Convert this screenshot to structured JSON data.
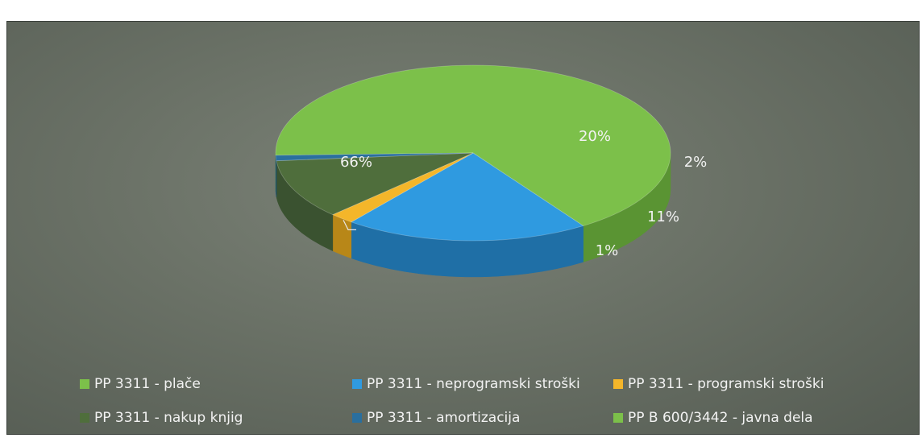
{
  "chart_data": {
    "type": "pie",
    "title": "",
    "style": "3d",
    "legend_position": "bottom",
    "slices": [
      {
        "name": "PP 3311 - plače",
        "value": 66,
        "label": "66%",
        "color": "#7cc04a",
        "side_color": "#5a9433"
      },
      {
        "name": "PP 3311 - neprogramski stroški",
        "value": 20,
        "label": "20%",
        "color": "#2f9ae0",
        "side_color": "#1f6fa6"
      },
      {
        "name": "PP 3311 - programski stroški",
        "value": 2,
        "label": "2%",
        "color": "#f4b62a",
        "side_color": "#b88718"
      },
      {
        "name": "PP 3311 - nakup knjig",
        "value": 11,
        "label": "11%",
        "color": "#4f6e3c",
        "side_color": "#3a5230"
      },
      {
        "name": "PP 3311 - amortizacija",
        "value": 1,
        "label": "1%",
        "color": "#2a6f9e",
        "side_color": "#1e5274"
      },
      {
        "name": "PP B 600/3442 - javna dela",
        "value": 0,
        "label": "",
        "color": "#7cc04a",
        "side_color": "#5a9433"
      }
    ]
  }
}
